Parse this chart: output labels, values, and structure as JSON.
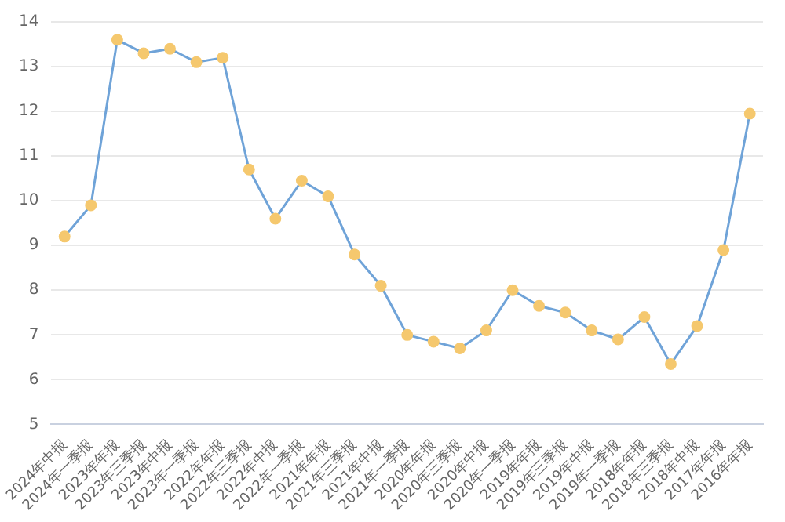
{
  "chart_data": {
    "type": "line",
    "categories": [
      "2024年中报",
      "2024年一季报",
      "2023年年报",
      "2023年三季报",
      "2023年中报",
      "2023年一季报",
      "2022年年报",
      "2022年三季报",
      "2022年中报",
      "2022年一季报",
      "2021年年报",
      "2021年三季报",
      "2021年中报",
      "2021年一季报",
      "2020年年报",
      "2020年三季报",
      "2020年中报",
      "2020年一季报",
      "2019年年报",
      "2019年三季报",
      "2019年中报",
      "2019年一季报",
      "2018年年报",
      "2018年三季报",
      "2018年中报",
      "2017年年报",
      "2016年年报"
    ],
    "series": [
      {
        "color": "#6fa3d8",
        "values": [
          9.2,
          9.9,
          13.6,
          13.3,
          13.4,
          13.1,
          13.2,
          10.7,
          9.6,
          10.45,
          10.1,
          8.8,
          8.1,
          7.0,
          6.85,
          6.7,
          7.1,
          8.0,
          7.65,
          7.5,
          7.1,
          6.9,
          7.4,
          6.35,
          7.2,
          8.9,
          11.95
        ]
      }
    ],
    "ylim": [
      5,
      14
    ],
    "yticks": [
      5,
      6,
      7,
      8,
      9,
      10,
      11,
      12,
      13,
      14
    ],
    "grid": "y",
    "legend": false,
    "marker": "circle",
    "line_style": "solid"
  }
}
